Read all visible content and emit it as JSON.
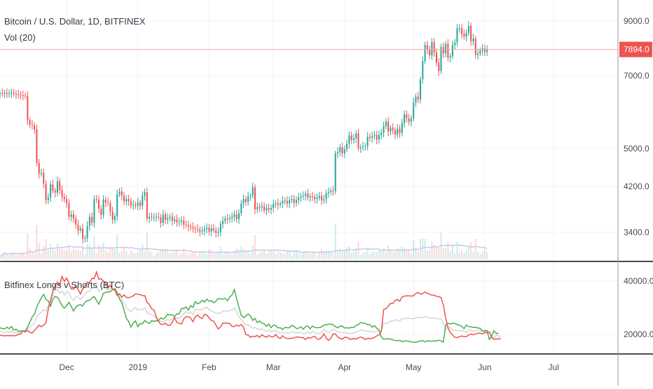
{
  "header": {
    "symbol": "Bitcoin / U.S. Dollar, 1D, BITFINEX",
    "volume_label": "Vol (20)",
    "indicator_label": "Bitfinex Longs v Shorts (BTC)"
  },
  "colors": {
    "up": "#26a69a",
    "down": "#ef5350",
    "longs": "#4caf50",
    "shorts": "#ef5350",
    "average": "#d6d6d6",
    "price_line": "#f4a9a8",
    "price_badge": "#ef5350",
    "volume_ma": "#c5cae9",
    "grid": "#f0f3fa",
    "axis_text": "#4a4a4a",
    "separator": "#4d4d4d"
  },
  "chart_data": [
    {
      "type": "candlestick",
      "title": "Bitcoin / U.S. Dollar, 1D, BITFINEX",
      "scale": "log",
      "ylim": [
        3000,
        9600
      ],
      "y_ticks": [
        3400,
        4200,
        5000,
        7000,
        9000
      ],
      "y_tick_labels": [
        "3400.0",
        "4200.0",
        "5000.0",
        "7000.0",
        "9000.0"
      ],
      "last_price": 7894.0,
      "last_price_label": "7894.0",
      "x_labels": [
        "Dec",
        "2019",
        "Feb",
        "Mar",
        "Apr",
        "May",
        "Jun",
        "Jul"
      ],
      "x_label_dates": [
        "2018-12-01",
        "2019-01-01",
        "2019-02-01",
        "2019-03-01",
        "2019-04-01",
        "2019-05-01",
        "2019-06-01",
        "2019-07-01"
      ],
      "x_range": [
        "2018-11-02",
        "2019-07-29"
      ],
      "grid": true,
      "series": [
        {
          "key": "close",
          "start_date": "2018-11-02",
          "values": [
            6450,
            6440,
            6460,
            6430,
            6450,
            6460,
            6430,
            6420,
            6410,
            6390,
            6380,
            6370,
            5700,
            5580,
            5560,
            5460,
            4680,
            4450,
            4470,
            4250,
            3940,
            3990,
            4240,
            4120,
            4080,
            4300,
            4130,
            4000,
            3960,
            3890,
            3650,
            3690,
            3620,
            3520,
            3430,
            3460,
            3300,
            3310,
            3500,
            3650,
            3550,
            3960,
            3950,
            3790,
            3680,
            3950,
            3900,
            3890,
            3740,
            3600,
            3660,
            4050,
            4100,
            4020,
            3920,
            3960,
            3920,
            3850,
            3860,
            3840,
            3900,
            3840,
            4020,
            4090,
            3620,
            3650,
            3640,
            3640,
            3650,
            3640,
            3550,
            3690,
            3600,
            3630,
            3650,
            3580,
            3610,
            3560,
            3570,
            3590,
            3520,
            3510,
            3490,
            3480,
            3460,
            3450,
            3440,
            3410,
            3420,
            3450,
            3470,
            3410,
            3460,
            3430,
            3390,
            3400,
            3530,
            3580,
            3620,
            3610,
            3630,
            3650,
            3690,
            3610,
            3710,
            3880,
            3960,
            3910,
            4010,
            4020,
            4180,
            3780,
            3820,
            3810,
            3830,
            3760,
            3800,
            3770,
            3800,
            3870,
            3880,
            3860,
            3880,
            3930,
            3930,
            3880,
            3940,
            3960,
            3890,
            3940,
            3990,
            4010,
            4020,
            4060,
            3990,
            4010,
            4000,
            3960,
            3980,
            4020,
            3940,
            3960,
            4070,
            4090,
            4120,
            4110,
            4890,
            4920,
            5030,
            4890,
            4980,
            5110,
            5310,
            5200,
            5240,
            5360,
            5010,
            5030,
            5050,
            5060,
            5280,
            5250,
            5290,
            5320,
            5210,
            5320,
            5380,
            5540,
            5660,
            5410,
            5500,
            5440,
            5330,
            5480,
            5370,
            5620,
            5850,
            5750,
            5660,
            5740,
            6180,
            6350,
            6270,
            6880,
            7480,
            8050,
            7900,
            7680,
            8160,
            7790,
            7420,
            7150,
            7980,
            7750,
            8100,
            7600,
            7650,
            8050,
            8150,
            8700,
            8710,
            8480,
            8380,
            8520,
            8800,
            8200,
            8300,
            7700,
            7750,
            7850,
            7930,
            7800,
            7894
          ]
        }
      ]
    },
    {
      "type": "line",
      "title": "Bitfinex Longs v Shorts (BTC)",
      "ylim": [
        14000,
        46000
      ],
      "y_ticks": [
        20000,
        40000
      ],
      "y_tick_labels": [
        "20000.0",
        "40000.0"
      ],
      "series": [
        {
          "key": "longs",
          "start_date": "2018-11-02",
          "values": [
            22500,
            22180,
            22100,
            22670,
            22150,
            22940,
            21590,
            21950,
            21100,
            21360,
            21240,
            21340,
            22730,
            24610,
            26550,
            27560,
            30270,
            32020,
            33720,
            35020,
            33130,
            32520,
            30550,
            33110,
            34190,
            33910,
            32500,
            30730,
            29820,
            30770,
            31990,
            30470,
            28740,
            30260,
            30900,
            31130,
            30630,
            32070,
            32650,
            32790,
            33630,
            34180,
            32770,
            31340,
            33060,
            35380,
            35720,
            35920,
            35930,
            36760,
            37160,
            35630,
            33260,
            31930,
            29030,
            26040,
            24870,
            22780,
            24290,
            25060,
            22920,
            24050,
            23930,
            25230,
            24500,
            24100,
            25170,
            24890,
            25060,
            25170,
            26180,
            25690,
            26370,
            27570,
            27260,
            27390,
            26700,
            27700,
            27700,
            29700,
            29690,
            30280,
            29080,
            30750,
            30070,
            32270,
            31480,
            31800,
            32810,
            32100,
            33210,
            32390,
            32640,
            31870,
            32460,
            33420,
            33340,
            33150,
            33540,
            32580,
            34050,
            34770,
            36800,
            33390,
            30230,
            27190,
            26280,
            26840,
            27660,
            26880,
            25220,
            26020,
            24450,
            25010,
            24270,
            23960,
            23040,
            23880,
            22530,
            23480,
            23280,
            22450,
            22540,
            21840,
            22620,
            22520,
            22470,
            23430,
            23000,
            22210,
            22320,
            22820,
            21930,
            22910,
            23190,
            22110,
            23120,
            22580,
            22490,
            22580,
            22820,
            23520,
            23590,
            23860,
            23830,
            23580,
            22880,
            22460,
            23130,
            23150,
            22400,
            22490,
            22370,
            22650,
            22590,
            23380,
            23640,
            24460,
            24280,
            24100,
            23640,
            23650,
            22660,
            23320,
            22320,
            21740,
            19020,
            18190,
            18350,
            18370,
            18210,
            18000,
            17760,
            17570,
            17820,
            17300,
            17480,
            17590,
            17380,
            17230,
            17060,
            17020,
            17310,
            17530,
            17670,
            17200,
            17620,
            17520,
            17480,
            17560,
            17520,
            17860,
            17510,
            17140,
            23540,
            24210,
            23870,
            24220,
            24140,
            23710,
            23400,
            23020,
            22140,
            23490,
            22860,
            22810,
            22620,
            22660,
            22420,
            22300,
            21250,
            21500,
            21420,
            18150,
            19370,
            21350,
            20390,
            20400
          ]
        },
        {
          "key": "shorts",
          "start_date": "2018-11-02",
          "values": [
            19730,
            19580,
            19490,
            19560,
            19510,
            19570,
            19480,
            19540,
            20040,
            20160,
            21320,
            20860,
            21490,
            20790,
            20510,
            21500,
            22480,
            23450,
            22900,
            23470,
            24430,
            29490,
            32890,
            36240,
            38370,
            39600,
            38380,
            41710,
            39840,
            41100,
            39250,
            37020,
            36940,
            38100,
            36810,
            35130,
            37010,
            38150,
            39560,
            39400,
            41000,
            40850,
            43390,
            40670,
            40810,
            40000,
            39290,
            37340,
            38410,
            36830,
            36640,
            34570,
            35240,
            33960,
            34830,
            33840,
            33740,
            34030,
            34400,
            35190,
            35000,
            34900,
            34540,
            34490,
            31990,
            31290,
            29590,
            29220,
            26640,
            24840,
            23840,
            23760,
            24200,
            23380,
            23400,
            24590,
            26240,
            24430,
            24100,
            23880,
            25830,
            26630,
            26680,
            26130,
            24720,
            26590,
            27250,
            26370,
            25920,
            27500,
            27270,
            26200,
            25230,
            25020,
            23450,
            22090,
            22850,
            24220,
            24330,
            24180,
            24090,
            22960,
            23000,
            23550,
            23110,
            23740,
            22660,
            19910,
            19780,
            18920,
            19310,
            19200,
            19600,
            18870,
            19880,
            19310,
            18980,
            19550,
            19190,
            19040,
            20000,
            18930,
            18450,
            19500,
            18680,
            18480,
            18440,
            18590,
            18660,
            19080,
            18970,
            18850,
            18750,
            18050,
            18850,
            18560,
            19030,
            19250,
            18290,
            18190,
            18850,
            20250,
            18590,
            17780,
            18480,
            20240,
            20160,
            19080,
            18500,
            18210,
            18870,
            18950,
            18360,
            18080,
            18530,
            18220,
            18670,
            19020,
            18730,
            18040,
            18500,
            18330,
            18590,
            18860,
            19430,
            19840,
            21080,
            29360,
            29600,
            30550,
            31650,
            31560,
            32760,
            33100,
            32390,
            34010,
            34290,
            34470,
            34470,
            34340,
            34510,
            35290,
            35750,
            35120,
            35250,
            35840,
            35440,
            35020,
            34720,
            34700,
            34260,
            34170,
            33740,
            31050,
            26000,
            22480,
            20660,
            19800,
            18920,
            18800,
            19170,
            19400,
            19190,
            19200,
            19820,
            20090,
            19880,
            20130,
            20510,
            20520,
            20190,
            20790,
            20620,
            20850,
            19050,
            18080,
            18350,
            18260,
            18550
          ]
        },
        {
          "key": "average",
          "start_date": "2018-11-02",
          "values": [
            21100,
            20900,
            20800,
            21100,
            20800,
            21300,
            20500,
            20700,
            20600,
            20800,
            21300,
            21100,
            22100,
            22700,
            23500,
            24500,
            26400,
            27700,
            28300,
            29200,
            28800,
            31000,
            31700,
            34700,
            36300,
            36800,
            35400,
            36200,
            34800,
            35900,
            35600,
            33700,
            32800,
            34200,
            33900,
            33100,
            33800,
            35100,
            36100,
            36100,
            37300,
            37500,
            38100,
            36000,
            36900,
            37700,
            37500,
            36600,
            37200,
            36800,
            36900,
            35100,
            34300,
            32900,
            31900,
            29900,
            29300,
            28400,
            29300,
            30100,
            29000,
            29500,
            29200,
            29900,
            28200,
            27700,
            27400,
            27100,
            25900,
            25000,
            25000,
            24700,
            25300,
            25500,
            25300,
            26000,
            26500,
            26100,
            25900,
            26800,
            27800,
            28500,
            27900,
            28400,
            27400,
            29400,
            29400,
            29100,
            29400,
            29800,
            30200,
            29300,
            28900,
            28400,
            28000,
            27800,
            28100,
            28700,
            28900,
            28400,
            29100,
            28900,
            29900,
            28500,
            26700,
            25500,
            24500,
            23400,
            23700,
            22900,
            22300,
            22600,
            22000,
            21900,
            22100,
            21600,
            21000,
            21700,
            20900,
            21300,
            21600,
            20700,
            20500,
            20700,
            20700,
            20500,
            20500,
            21000,
            20800,
            20600,
            20600,
            20800,
            20300,
            20500,
            21000,
            20300,
            21100,
            20900,
            20400,
            20400,
            20800,
            21900,
            21100,
            20800,
            21200,
            21900,
            21500,
            20800,
            20800,
            20700,
            20600,
            20700,
            20400,
            20400,
            20600,
            20800,
            21200,
            21600,
            21600,
            21200,
            21300,
            21000,
            21100,
            20800,
            21400,
            21100,
            21400,
            24200,
            23900,
            24500,
            25000,
            24900,
            25400,
            25400,
            25000,
            25900,
            25800,
            26000,
            26000,
            25900,
            25900,
            26200,
            26400,
            26200,
            26400,
            26800,
            26300,
            26300,
            26100,
            26100,
            25900,
            25800,
            25800,
            24300,
            21600,
            23000,
            22400,
            21800,
            21600,
            21500,
            21400,
            21400,
            21100,
            20700,
            21700,
            21500,
            21300,
            21400,
            21600,
            21500,
            21200,
            21000,
            21100,
            21100,
            18600,
            18700,
            19800,
            19300,
            19500
          ]
        }
      ]
    }
  ]
}
